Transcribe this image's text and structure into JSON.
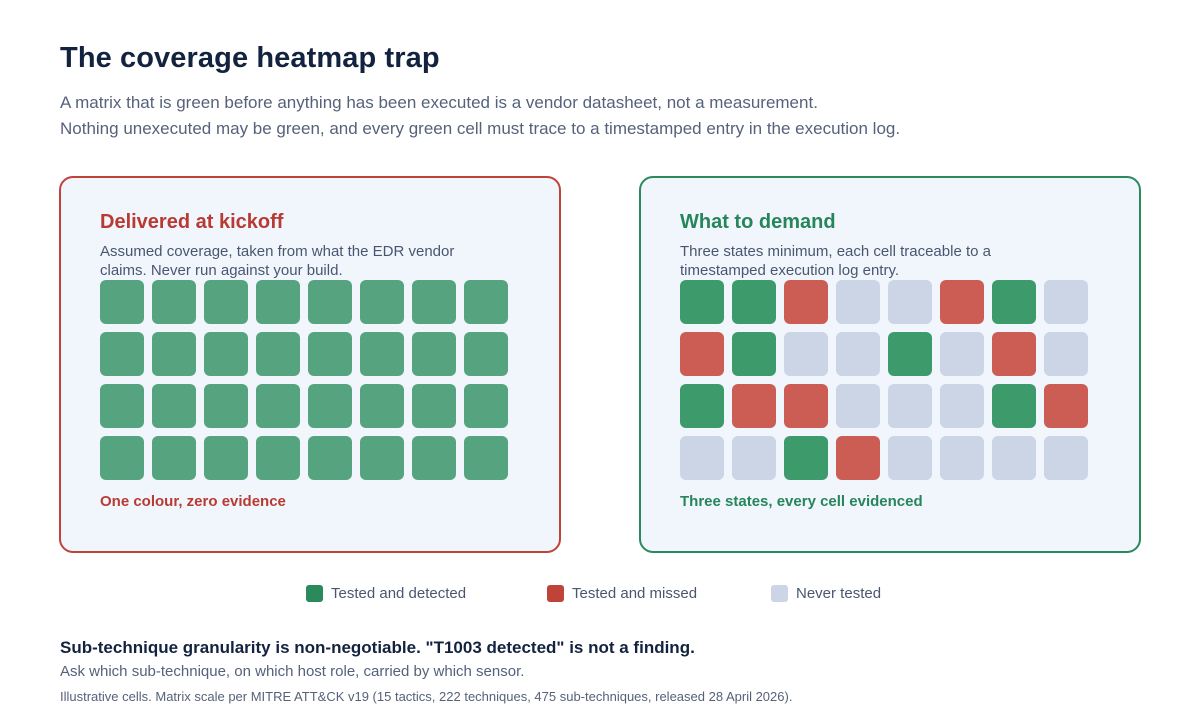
{
  "title": "The coverage heatmap trap",
  "subtitle_line1": "A matrix that is green before anything has been executed is a vendor datasheet, not a measurement.",
  "subtitle_line2": "Nothing unexecuted may be green, and every green cell must trace to a timestamped entry in the execution log.",
  "colors": {
    "assumed": "#55a47f",
    "detected": "#3d9a6b",
    "missed": "#cc5d55",
    "never": "#ccd5e5",
    "legend_detected": "#2a8a5c",
    "legend_missed": "#c0433a",
    "legend_never": "#ccd5e5"
  },
  "left_panel": {
    "title": "Delivered at kickoff",
    "description": "Assumed coverage, taken from what the EDR vendor claims. Never run against your build.",
    "footer": "One colour, zero evidence",
    "cells": [
      [
        "A",
        "A",
        "A",
        "A",
        "A",
        "A",
        "A",
        "A"
      ],
      [
        "A",
        "A",
        "A",
        "A",
        "A",
        "A",
        "A",
        "A"
      ],
      [
        "A",
        "A",
        "A",
        "A",
        "A",
        "A",
        "A",
        "A"
      ],
      [
        "A",
        "A",
        "A",
        "A",
        "A",
        "A",
        "A",
        "A"
      ]
    ]
  },
  "right_panel": {
    "title": "What to demand",
    "description": "Three states minimum, each cell traceable to a timestamped execution log entry.",
    "footer": "Three states, every cell evidenced",
    "cells": [
      [
        "D",
        "D",
        "M",
        "N",
        "N",
        "M",
        "D",
        "N"
      ],
      [
        "M",
        "D",
        "N",
        "N",
        "D",
        "N",
        "M",
        "N"
      ],
      [
        "D",
        "M",
        "M",
        "N",
        "N",
        "N",
        "D",
        "M"
      ],
      [
        "N",
        "N",
        "D",
        "M",
        "N",
        "N",
        "N",
        "N"
      ]
    ]
  },
  "legend": {
    "detected": "Tested and detected",
    "missed": "Tested and missed",
    "never": "Never tested"
  },
  "notes": {
    "strong": "Sub-technique granularity is non-negotiable. \"T1003 detected\" is not a finding.",
    "sub": "Ask which sub-technique, on which host role, carried by which sensor.",
    "small": "Illustrative cells. Matrix scale per MITRE ATT&CK v19 (15 tactics, 222 techniques, 475 sub-techniques, released 28 April 2026)."
  }
}
